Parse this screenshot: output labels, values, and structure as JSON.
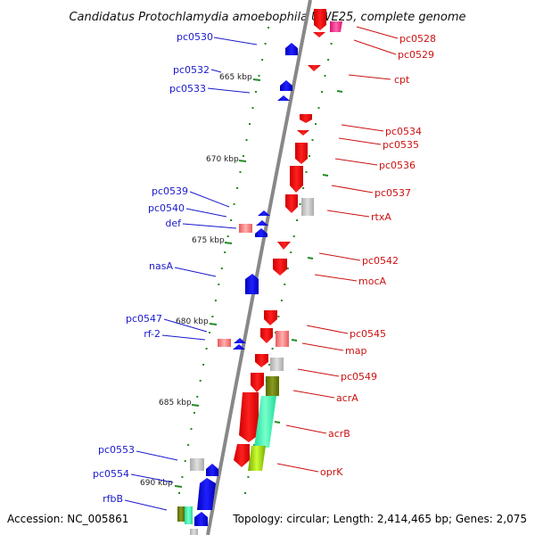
{
  "title": "Candidatus Protochlamydia amoebophila UWE25, complete genome",
  "footer": {
    "accession": "Accession: NC_005861",
    "summary": "Topology: circular; Length: 2,414,465 bp; Genes: 2,075"
  },
  "scale_labels": [
    "665 kbp",
    "670 kbp",
    "675 kbp",
    "680 kbp",
    "685 kbp",
    "690 kbp"
  ],
  "genes_left": [
    "pc0530",
    "pc0532",
    "pc0533",
    "pc0539",
    "pc0540",
    "def",
    "nasA",
    "pc0547",
    "rf-2",
    "pc0553",
    "pc0554",
    "rfbB"
  ],
  "genes_right": [
    "pc0528",
    "pc0529",
    "cpt",
    "pc0534",
    "pc0535",
    "pc0536",
    "pc0537",
    "rtxA",
    "pc0542",
    "mocA",
    "pc0545",
    "map",
    "pc0549",
    "acrA",
    "acrB",
    "oprK"
  ],
  "colors": {
    "forward": "#ee0000",
    "reverse": "#0000ee",
    "left_label": "#1a1acc",
    "right_label": "#cc1111",
    "tick": "#228b22",
    "axis": "#888888"
  }
}
